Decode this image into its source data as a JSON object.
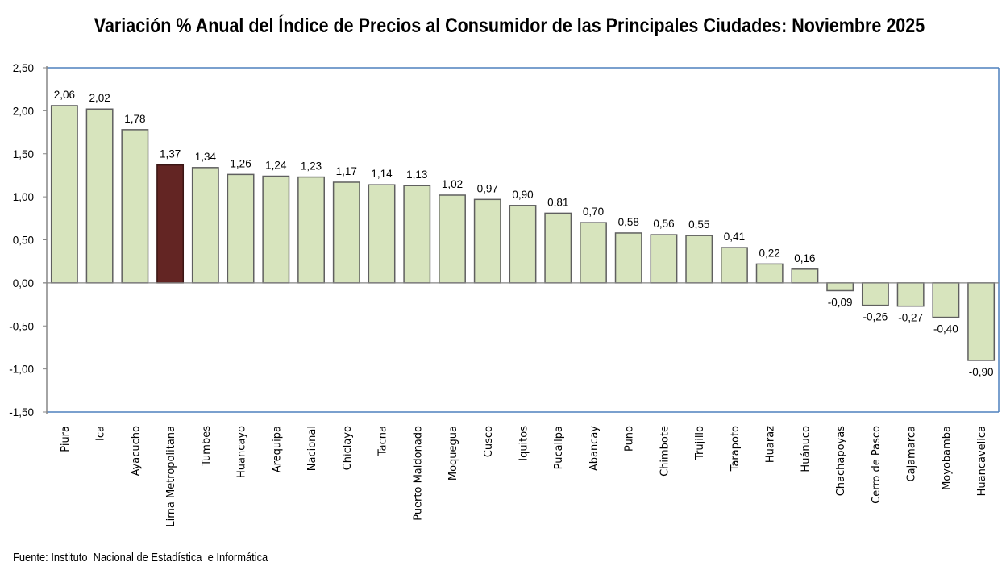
{
  "chart_data": {
    "type": "bar",
    "title": "Variación % Anual del Índice de Precios al Consumidor de las Principales Ciudades: Noviembre 2025",
    "xlabel": "",
    "ylabel": "",
    "ylim": [
      -1.5,
      2.5
    ],
    "yticks": [
      2.5,
      2.0,
      1.5,
      1.0,
      0.5,
      0.0,
      -0.5,
      -1.0,
      -1.5
    ],
    "ytick_labels": [
      "2,50",
      "2,00",
      "1,50",
      "1,00",
      "0,50",
      "0,00",
      "-0,50",
      "-1,00",
      "-1,50"
    ],
    "grid": false,
    "legend": "none",
    "categories": [
      "Piura",
      "Ica",
      "Ayacucho",
      "Lima Metropolitana",
      "Tumbes",
      "Huancayo",
      "Arequipa",
      "Nacional",
      "Chiclayo",
      "Tacna",
      "Puerto Maldonado",
      "Moquegua",
      "Cusco",
      "Iquitos",
      "Pucallpa",
      "Abancay",
      "Puno",
      "Chimbote",
      "Trujillo",
      "Tarapoto",
      "Huaraz",
      "Huánuco",
      "Chachapoyas",
      "Cerro de Pasco",
      "Cajamarca",
      "Moyobamba",
      "Huancavelica"
    ],
    "values": [
      2.06,
      2.02,
      1.78,
      1.37,
      1.34,
      1.26,
      1.24,
      1.23,
      1.17,
      1.14,
      1.13,
      1.02,
      0.97,
      0.9,
      0.81,
      0.7,
      0.58,
      0.56,
      0.55,
      0.41,
      0.22,
      0.16,
      -0.09,
      -0.26,
      -0.27,
      -0.4,
      -0.9
    ],
    "data_labels": [
      "2,06",
      "2,02",
      "1,78",
      "1,37",
      "1,34",
      "1,26",
      "1,24",
      "1,23",
      "1,17",
      "1,14",
      "1,13",
      "1,02",
      "0,97",
      "0,90",
      "0,81",
      "0,70",
      "0,58",
      "0,56",
      "0,55",
      "0,41",
      "0,22",
      "0,16",
      "-0,09",
      "-0,26",
      "-0,27",
      "-0,40",
      "-0,90"
    ],
    "highlight_category": "Lima Metropolitana",
    "colors": {
      "bar_fill": "#d7e4bd",
      "bar_stroke": "#5f5f5f",
      "highlight_fill": "#632523",
      "frame": "#4f81bd",
      "axis": "#868686"
    }
  },
  "footer": {
    "source": "Fuente: Instituto  Nacional de Estadística  e Informática"
  }
}
